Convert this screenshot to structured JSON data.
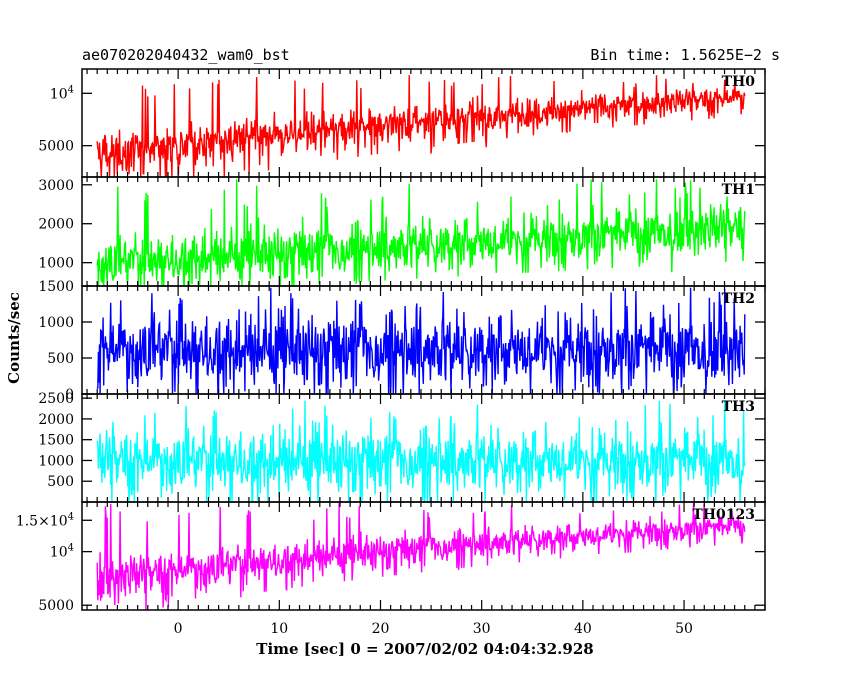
{
  "header": {
    "left": "ae070202040432_wam0_bst",
    "right": "Bin time: 1.5625E−2 s"
  },
  "chart_data": {
    "type": "line",
    "xlabel": "Time [sec] 0 = 2007/02/02 04:04:32.928",
    "ylabel": "Counts/sec",
    "xlim": [
      -9.5,
      58
    ],
    "x_ticks": [
      0,
      10,
      20,
      30,
      40,
      50
    ],
    "x_ticklabels": [
      "0",
      "10",
      "20",
      "30",
      "40",
      "50"
    ],
    "panels": [
      {
        "name": "TH0",
        "color": "#ff0000",
        "ylim": [
          3300,
          13800
        ],
        "yscale": "log",
        "y_ticks": [
          5000,
          10000
        ],
        "y_ticklabels": [
          "5000",
          "10^4"
        ],
        "x_range": [
          -8,
          56
        ],
        "trend_start": 4300,
        "trend_end": 9500,
        "noise_std": 800,
        "spike_max": 12800
      },
      {
        "name": "TH1",
        "color": "#00ff00",
        "ylim": [
          400,
          3200
        ],
        "yscale": "linear",
        "y_ticks": [
          1000,
          2000,
          3000
        ],
        "y_ticklabels": [
          "1000",
          "2000",
          "3000"
        ],
        "x_range": [
          -8,
          56
        ],
        "trend_start": 1000,
        "trend_end": 1900,
        "noise_std": 330,
        "spike_max": 3150
      },
      {
        "name": "TH2",
        "color": "#0000ff",
        "ylim": [
          0,
          1500
        ],
        "yscale": "linear",
        "y_ticks": [
          0,
          500,
          1000,
          1500
        ],
        "y_ticklabels": [
          "0",
          "500",
          "1000",
          "1500"
        ],
        "x_range": [
          -8,
          56
        ],
        "trend_start": 620,
        "trend_end": 620,
        "noise_std": 250,
        "spike_max": 1480
      },
      {
        "name": "TH3",
        "color": "#00ffff",
        "ylim": [
          0,
          2600
        ],
        "yscale": "linear",
        "y_ticks": [
          500,
          1000,
          1500,
          2000,
          2500
        ],
        "y_ticklabels": [
          "500",
          "1000",
          "1500",
          "2000",
          "2500"
        ],
        "x_range": [
          -8,
          56
        ],
        "trend_start": 1000,
        "trend_end": 1000,
        "noise_std": 380,
        "spike_max": 2450
      },
      {
        "name": "TH0123",
        "color": "#ff00ff",
        "ylim": [
          4700,
          19000
        ],
        "yscale": "log",
        "y_ticks": [
          5000,
          10000,
          15000
        ],
        "y_ticklabels": [
          "5000",
          "10^4",
          "1.5×10^4"
        ],
        "x_range": [
          -8,
          56
        ],
        "trend_start": 7000,
        "trend_end": 14000,
        "noise_std": 1100,
        "spike_max": 18800
      }
    ]
  }
}
